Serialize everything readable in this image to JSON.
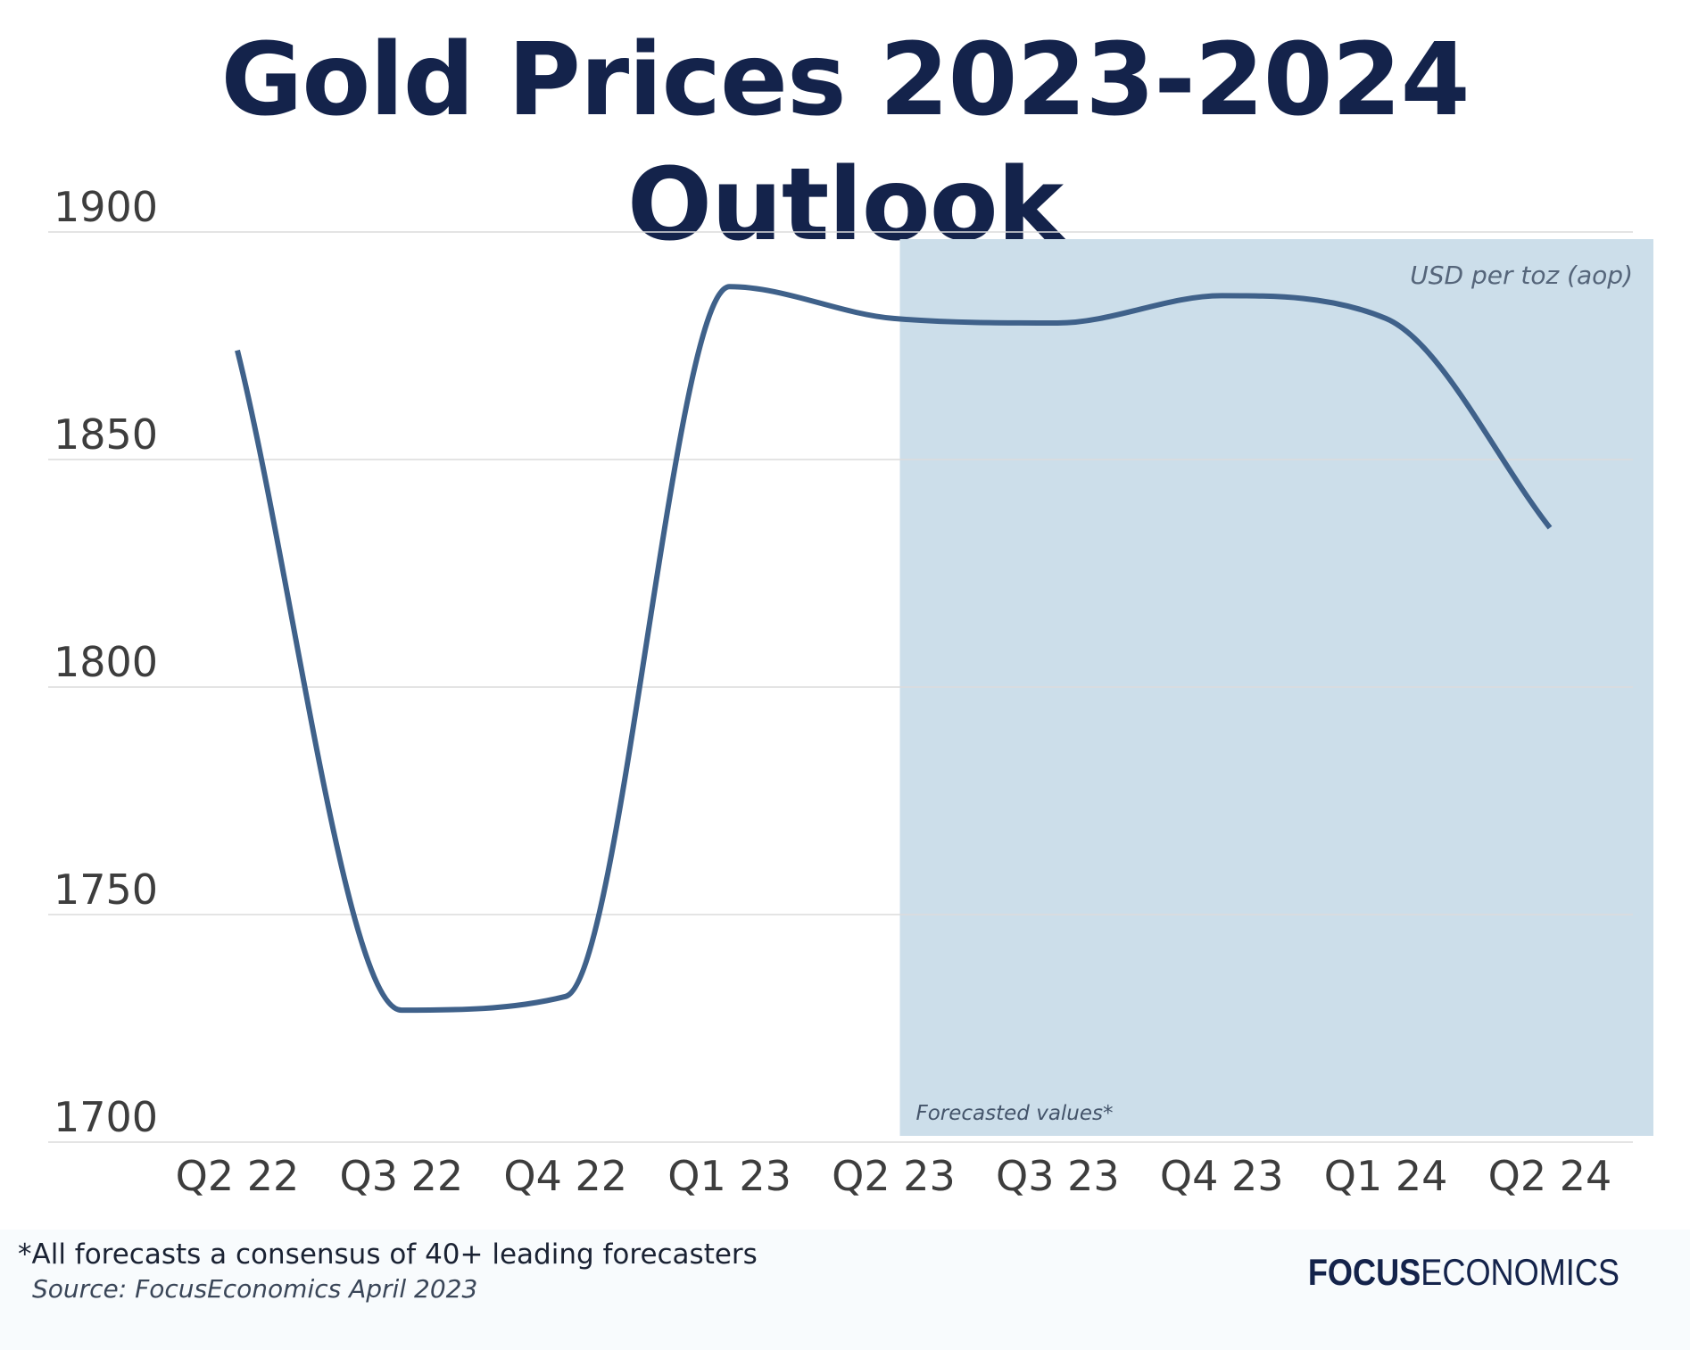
{
  "title": "Gold Prices 2023-2024 Outlook",
  "footer": {
    "note": "*All forecasts a consensus of 40+ leading forecasters",
    "source": "Source: FocusEconomics April 2023",
    "logo_bold": "FOCUS",
    "logo_light": "ECONOMICS"
  },
  "colors": {
    "title": "#14234b",
    "line": "#3f618a",
    "forecast_band": "#ccdeea",
    "grid": "#dcdcdc",
    "tick_label": "#3d3d3d",
    "logo": "#14234b"
  },
  "chart_data": {
    "type": "line",
    "title": "Gold Prices 2023-2024 Outlook",
    "unit_label": "USD per toz (aop)",
    "forecast_label": "Forecasted values*",
    "forecast_start": "Q2 23",
    "categories": [
      "Q2 22",
      "Q3 22",
      "Q4 22",
      "Q1 23",
      "Q2 23",
      "Q3 23",
      "Q4 23",
      "Q1 24",
      "Q2 24"
    ],
    "series": [
      {
        "values": [
          1874,
          1729,
          1732,
          1888,
          1881,
          1880,
          1886,
          1881,
          1835
        ]
      }
    ],
    "ylim": [
      1700,
      1900
    ],
    "yticks": [
      1700,
      1750,
      1800,
      1850,
      1900
    ],
    "grid": true,
    "legend": "none"
  }
}
